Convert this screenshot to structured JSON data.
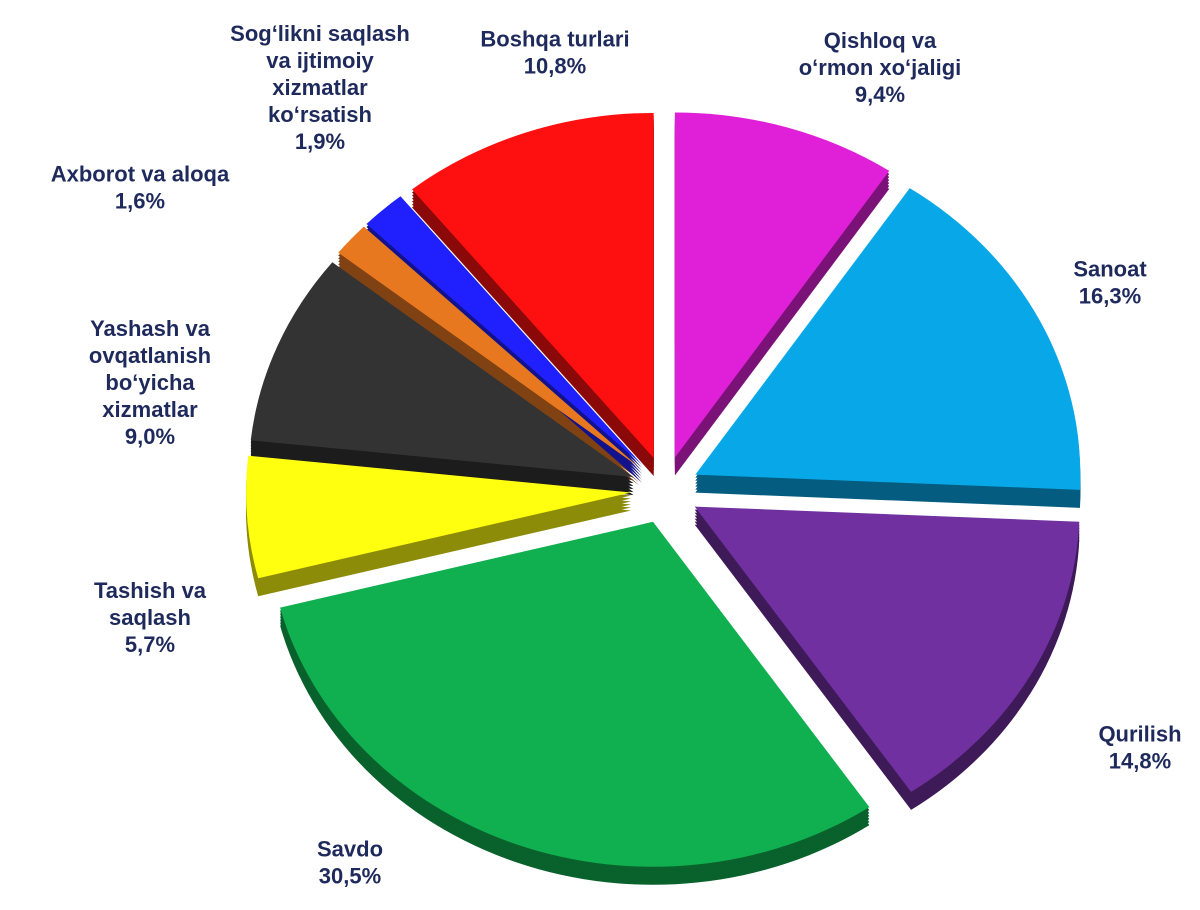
{
  "chart_data": {
    "type": "pie",
    "categories": [
      [
        "Qishloq va",
        "o‘rmon xo‘jaligi"
      ],
      [
        "Sanoat"
      ],
      [
        "Qurilish"
      ],
      [
        "Savdo"
      ],
      [
        "Tashish va",
        "saqlash"
      ],
      [
        "Yashash va",
        "ovqatlanish",
        "bo‘yicha",
        "xizmatlar"
      ],
      [
        "Axborot va aloqa"
      ],
      [
        "Sog‘likni saqlash",
        "va ijtimoiy",
        "xizmatlar",
        "ko‘rsatish"
      ],
      [
        "Boshqa turlari"
      ]
    ],
    "values": [
      9.4,
      16.3,
      14.8,
      30.5,
      5.7,
      9.0,
      1.6,
      1.9,
      10.8
    ],
    "value_labels": [
      "9,4%",
      "16,3%",
      "14,8%",
      "30,5%",
      "5,7%",
      "9,0%",
      "1,6%",
      "1,9%",
      "10,8%"
    ],
    "colors": [
      "#e020d8",
      "#08a8e8",
      "#7030a0",
      "#10b050",
      "#ffff10",
      "#333333",
      "#e87820",
      "#2020ff",
      "#ff1010"
    ]
  }
}
